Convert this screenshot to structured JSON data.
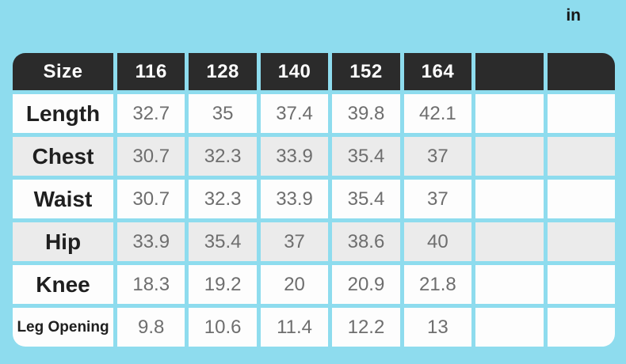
{
  "unit_label": "in",
  "colors": {
    "background": "#8edcee",
    "header_bg": "#2b2b2b",
    "header_text": "#ffffff",
    "row_white": "#fdfdfd",
    "row_gray": "#ebebeb",
    "label_text": "#1f1f1f",
    "value_text": "#6e6e6e"
  },
  "table": {
    "header": [
      "Size",
      "116",
      "128",
      "140",
      "152",
      "164",
      "",
      ""
    ],
    "rows": [
      {
        "label": "Length",
        "values": [
          "32.7",
          "35",
          "37.4",
          "39.8",
          "42.1",
          "",
          ""
        ]
      },
      {
        "label": "Chest",
        "values": [
          "30.7",
          "32.3",
          "33.9",
          "35.4",
          "37",
          "",
          ""
        ]
      },
      {
        "label": "Waist",
        "values": [
          "30.7",
          "32.3",
          "33.9",
          "35.4",
          "37",
          "",
          ""
        ]
      },
      {
        "label": "Hip",
        "values": [
          "33.9",
          "35.4",
          "37",
          "38.6",
          "40",
          "",
          ""
        ]
      },
      {
        "label": "Knee",
        "values": [
          "18.3",
          "19.2",
          "20",
          "20.9",
          "21.8",
          "",
          ""
        ]
      },
      {
        "label": "Leg Opening",
        "values": [
          "9.8",
          "10.6",
          "11.4",
          "12.2",
          "13",
          "",
          ""
        ]
      }
    ]
  },
  "chart_data": {
    "type": "table",
    "unit": "in",
    "columns": [
      "Size",
      "116",
      "128",
      "140",
      "152",
      "164",
      "",
      ""
    ],
    "rows": [
      [
        "Length",
        32.7,
        35,
        37.4,
        39.8,
        42.1,
        null,
        null
      ],
      [
        "Chest",
        30.7,
        32.3,
        33.9,
        35.4,
        37,
        null,
        null
      ],
      [
        "Waist",
        30.7,
        32.3,
        33.9,
        35.4,
        37,
        null,
        null
      ],
      [
        "Hip",
        33.9,
        35.4,
        37,
        38.6,
        40,
        null,
        null
      ],
      [
        "Knee",
        18.3,
        19.2,
        20,
        20.9,
        21.8,
        null,
        null
      ],
      [
        "Leg Opening",
        9.8,
        10.6,
        11.4,
        12.2,
        13,
        null,
        null
      ]
    ]
  }
}
